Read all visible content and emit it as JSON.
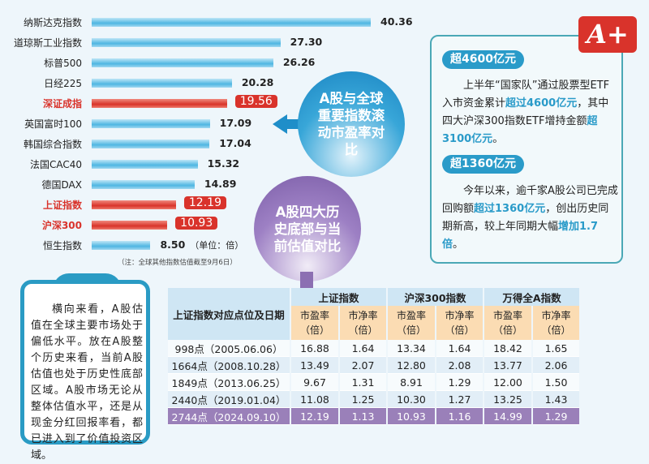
{
  "chart_data": {
    "type": "bar",
    "orientation": "horizontal",
    "categories": [
      "纳斯达克指数",
      "道琼斯工业指数",
      "标普500",
      "日经225",
      "深证成指",
      "英国富时100",
      "韩国综合指数",
      "法国CAC40",
      "德国DAX",
      "上证指数",
      "沪深300",
      "恒生指数"
    ],
    "values": [
      40.36,
      27.3,
      26.26,
      20.28,
      19.56,
      17.09,
      17.04,
      15.32,
      14.89,
      12.19,
      10.93,
      8.5
    ],
    "value_labels": [
      "40.36",
      "27.30",
      "26.26",
      "20.28",
      "19.56",
      "17.09",
      "17.04",
      "15.32",
      "14.89",
      "12.19",
      "10.93",
      "8.50"
    ],
    "highlighted": [
      "深证成指",
      "上证指数",
      "沪深300"
    ],
    "unit": "（单位：倍）",
    "note": "（注：全球其他指数估值截至9月6日）",
    "title": "A股与全球重要指数滚动市盈率对比",
    "colors": {
      "bar": "#4fb6e2",
      "highlight": "#d9332b"
    }
  },
  "table": {
    "title": "A股四大历史底部与当前估值对比",
    "row_header": "上证指数对应点位及日期",
    "groups": [
      "上证指数",
      "沪深300指数",
      "万得全A指数"
    ],
    "subheaders": [
      [
        "市盈率",
        "（倍）"
      ],
      [
        "市净率",
        "（倍）"
      ],
      [
        "市盈率",
        "（倍）"
      ],
      [
        "市净率",
        "（倍）"
      ],
      [
        "市盈率",
        "（倍）"
      ],
      [
        "市净率",
        "（倍）"
      ]
    ],
    "rows": [
      [
        "998点（2005.06.06）",
        "16.88",
        "1.64",
        "13.34",
        "1.64",
        "18.42",
        "1.65"
      ],
      [
        "1664点（2008.10.28）",
        "13.49",
        "2.07",
        "12.80",
        "2.08",
        "13.77",
        "2.06"
      ],
      [
        "1849点（2013.06.25）",
        "9.67",
        "1.31",
        "8.91",
        "1.29",
        "12.00",
        "1.50"
      ],
      [
        "2440点（2019.01.04）",
        "11.08",
        "1.25",
        "10.30",
        "1.27",
        "13.25",
        "1.43"
      ],
      [
        "2744点（2024.09.10）",
        "12.19",
        "1.13",
        "10.93",
        "1.16",
        "14.99",
        "1.29"
      ]
    ]
  },
  "sidebox": {
    "badge": "A+",
    "pill1": "超4600亿元",
    "p1": [
      "上半年“国家队”通过股票型ETF入市资金累计",
      "超过4600亿元",
      "，其中四大沪深300指数ETF增持金额",
      "超3100亿元",
      "。"
    ],
    "pill2": "超1360亿元",
    "p2": [
      "今年以来，逾千家A股公司已完成回购额",
      "超过1360亿元",
      "，创出历史同期新高，较上年同期大幅",
      "增加1.7倍",
      "。"
    ]
  },
  "clipboard": {
    "text": "横向来看，A股估值在全球主要市场处于偏低水平。放在A股整个历史来看，当前A股估值也处于历史性底部区域。A股市场无论从整体估值水平，还是从现金分红回报率看，都已进入到了价值投资区域。"
  }
}
